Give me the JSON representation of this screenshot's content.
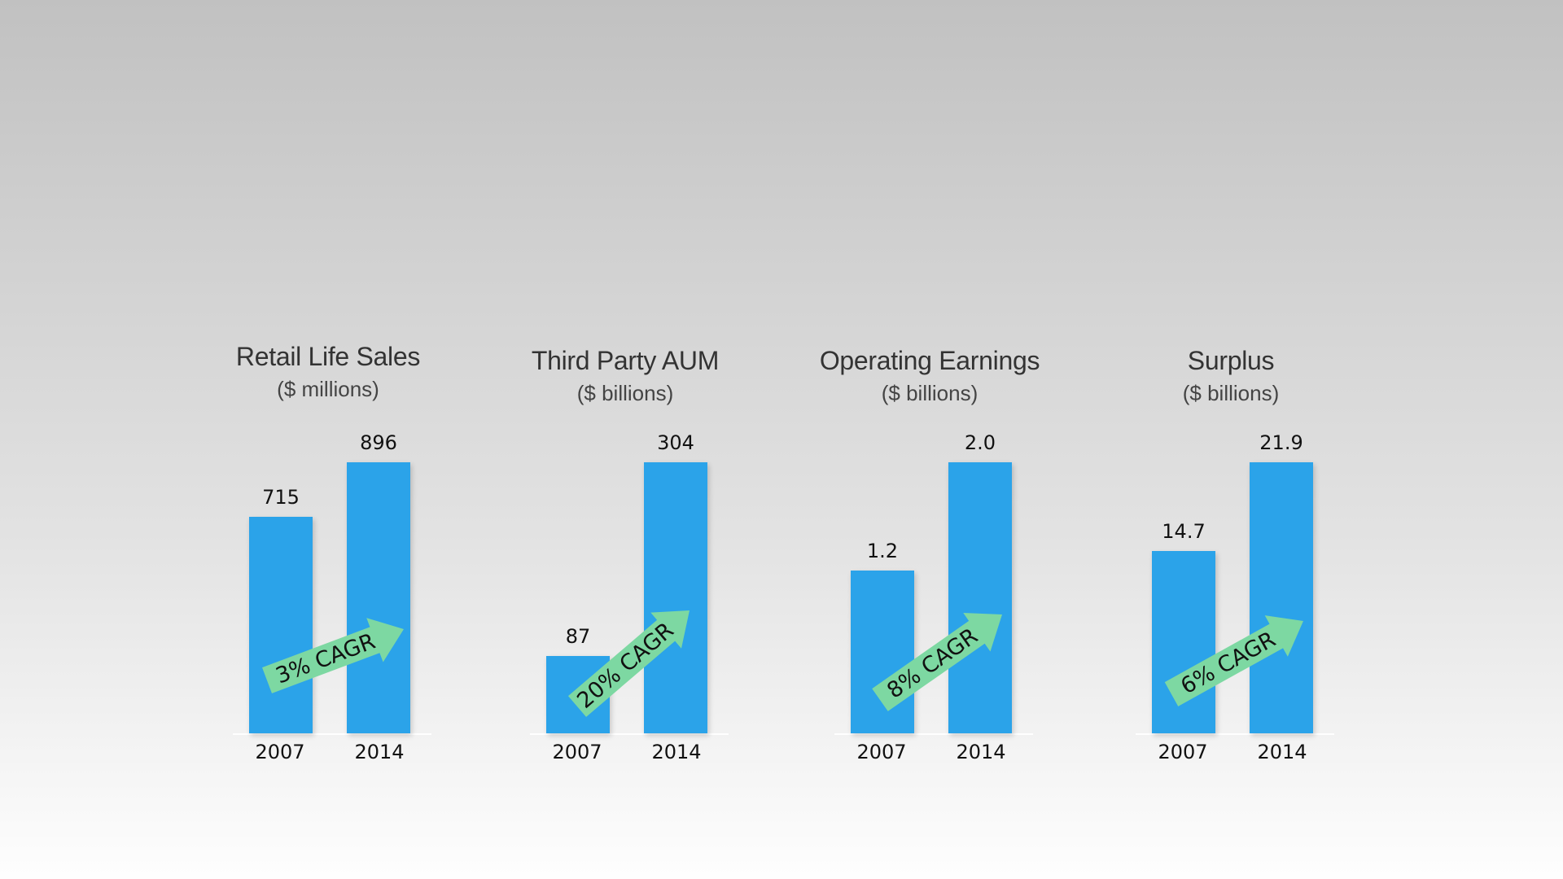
{
  "colors": {
    "bar": "#2ba3e9",
    "arrow": "#7dd8a2",
    "text": "#111111"
  },
  "chart_data": [
    {
      "type": "bar",
      "title": "Retail Life Sales",
      "subtitle": "($ millions)",
      "categories": [
        "2007",
        "2014"
      ],
      "values": [
        715,
        896
      ],
      "value_labels": [
        "715",
        "896"
      ],
      "annotation": "3% CAGR"
    },
    {
      "type": "bar",
      "title": "Third Party AUM",
      "subtitle": "($ billions)",
      "categories": [
        "2007",
        "2014"
      ],
      "values": [
        87,
        304
      ],
      "value_labels": [
        "87",
        "304"
      ],
      "annotation": "20% CAGR"
    },
    {
      "type": "bar",
      "title": "Operating Earnings",
      "subtitle": "($ billions)",
      "categories": [
        "2007",
        "2014"
      ],
      "values": [
        1.2,
        2.0
      ],
      "value_labels": [
        "1.2",
        "2.0"
      ],
      "annotation": "8% CAGR"
    },
    {
      "type": "bar",
      "title": "Surplus",
      "subtitle": "($ billions)",
      "categories": [
        "2007",
        "2014"
      ],
      "values": [
        14.7,
        21.9
      ],
      "value_labels": [
        "14.7",
        "21.9"
      ],
      "annotation": "6% CAGR"
    }
  ]
}
